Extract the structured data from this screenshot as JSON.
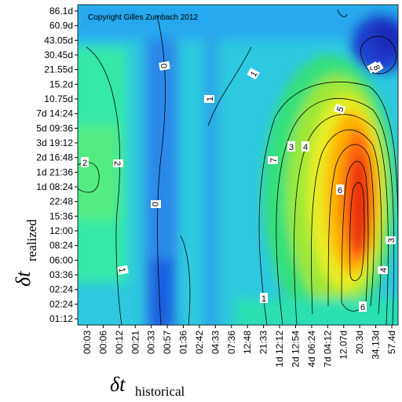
{
  "chart_data": {
    "type": "heatmap",
    "title": "",
    "copyright": "Copyright Gilles Zumbach 2012",
    "xlabel": {
      "symbol": "δt",
      "subscript": "historical"
    },
    "ylabel": {
      "symbol": "δt",
      "subscript": "realized"
    },
    "x_ticks": [
      "00:03",
      "00:06",
      "00:12",
      "00:21",
      "00:33",
      "00:57",
      "01:36",
      "02:42",
      "04:33",
      "07:36",
      "12:48",
      "21:33",
      "1d 12:12",
      "2d 12:54",
      "4d 06:24",
      "7d 04:12",
      "12.07d",
      "20.3d",
      "34.13d",
      "57.4d"
    ],
    "y_ticks": [
      "86.1d",
      "60.9d",
      "43.05d",
      "30.45d",
      "21.55d",
      "15.2d",
      "10.75d",
      "7d 14:24",
      "5d 09:36",
      "3d 19:12",
      "2d 16:48",
      "1d 21:36",
      "1d 08:24",
      "22:48",
      "15:36",
      "12:00",
      "08:24",
      "06:00",
      "03:36",
      "02:24",
      "02:24",
      "01:12"
    ],
    "contour_labels": [
      "0",
      "0",
      "0",
      "1",
      "1",
      "1",
      "1",
      "2",
      "2",
      "3",
      "3",
      "4",
      "4",
      "5",
      "6",
      "6",
      "7",
      "8"
    ],
    "colorscale": [
      "#1f3bd0",
      "#1f77e8",
      "#22b8f0",
      "#23e0d0",
      "#2ee88a",
      "#6fe84a",
      "#d8f020",
      "#ffc000",
      "#ff6010",
      "#e82a10"
    ]
  }
}
